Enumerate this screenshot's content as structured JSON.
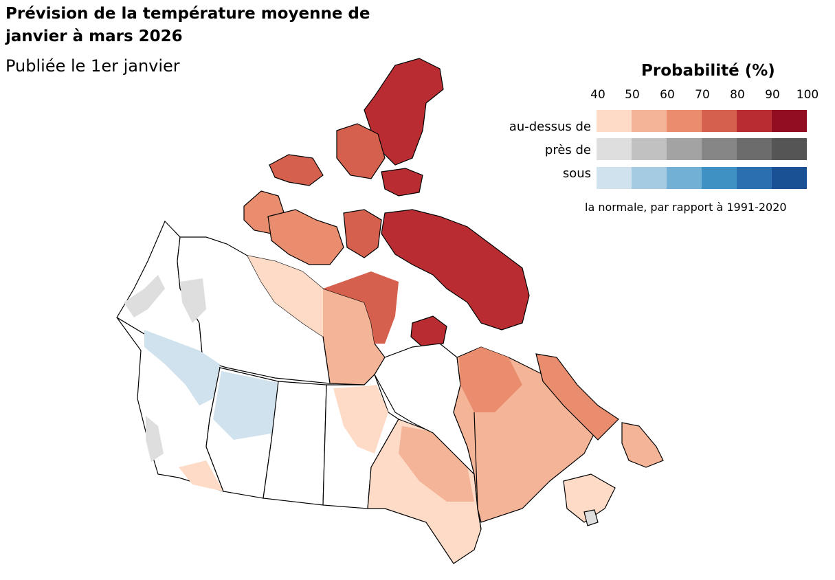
{
  "header": {
    "title": "Prévision de la température moyenne de janvier à mars 2026",
    "subtitle": "Publiée le 1er janvier"
  },
  "legend": {
    "title": "Probabilité (%)",
    "ticks": [
      "40",
      "50",
      "60",
      "70",
      "80",
      "90",
      "100"
    ],
    "rows": [
      {
        "label": "au-dessus de",
        "colors": [
          "#fddbc7",
          "#f4b498",
          "#e98d6e",
          "#d4604d",
          "#b82c32",
          "#920d22"
        ]
      },
      {
        "label": "près de",
        "colors": [
          "#dedede",
          "#c1c1c1",
          "#a3a3a3",
          "#868686",
          "#6c6c6c",
          "#555555"
        ]
      },
      {
        "label": "sous",
        "colors": [
          "#d0e2ee",
          "#a4cbe2",
          "#72b0d5",
          "#3f91c4",
          "#2b6fb1",
          "#1a5194"
        ]
      }
    ],
    "note": "la normale, par rapport à 1991-2020"
  },
  "map": {
    "region": "Canada",
    "outline_color": "#000000",
    "no_signal_color": "#ffffff"
  }
}
